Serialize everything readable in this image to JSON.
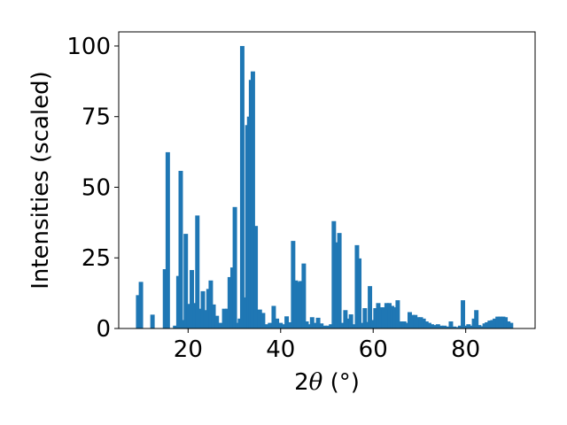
{
  "chart_data": {
    "type": "bar",
    "xlabel_prefix": "2",
    "xlabel_symbol": "θ",
    "xlabel_suffix": " (°)",
    "ylabel": "Intensities (scaled)",
    "xlim": [
      5,
      95
    ],
    "ylim": [
      0,
      105
    ],
    "x_ticks": [
      20,
      40,
      60,
      80
    ],
    "y_ticks": [
      0,
      25,
      50,
      75,
      100
    ],
    "grid": false,
    "bar_color": "#1f77b4",
    "bar_width": 0.95,
    "bars": [
      [
        9.2,
        11.8
      ],
      [
        9.8,
        16.5
      ],
      [
        12.3,
        4.9
      ],
      [
        15.0,
        21.0
      ],
      [
        15.6,
        62.4
      ],
      [
        17.2,
        1.0
      ],
      [
        17.9,
        18.6
      ],
      [
        18.4,
        55.8
      ],
      [
        19.0,
        3.0
      ],
      [
        19.5,
        33.5
      ],
      [
        20.1,
        8.7
      ],
      [
        20.8,
        20.7
      ],
      [
        21.4,
        9.0
      ],
      [
        22.0,
        40.0
      ],
      [
        22.6,
        7.0
      ],
      [
        23.2,
        13.2
      ],
      [
        23.8,
        6.5
      ],
      [
        24.4,
        14.0
      ],
      [
        24.9,
        17.0
      ],
      [
        25.5,
        8.5
      ],
      [
        26.2,
        4.5
      ],
      [
        27.0,
        2.0
      ],
      [
        27.8,
        7.0
      ],
      [
        28.5,
        7.0
      ],
      [
        29.0,
        18.2
      ],
      [
        29.6,
        21.6
      ],
      [
        30.1,
        43.0
      ],
      [
        30.7,
        2.0
      ],
      [
        31.2,
        3.5
      ],
      [
        31.7,
        100.0
      ],
      [
        32.3,
        11.0
      ],
      [
        32.8,
        72.0
      ],
      [
        33.2,
        75.0
      ],
      [
        33.6,
        88.0
      ],
      [
        34.0,
        91.0
      ],
      [
        34.6,
        36.3
      ],
      [
        35.5,
        6.7
      ],
      [
        36.2,
        5.5
      ],
      [
        37.0,
        1.5
      ],
      [
        37.7,
        2.0
      ],
      [
        38.5,
        8.0
      ],
      [
        39.2,
        3.5
      ],
      [
        40.0,
        2.0
      ],
      [
        40.7,
        1.5
      ],
      [
        41.3,
        4.3
      ],
      [
        42.0,
        2.2
      ],
      [
        42.7,
        31.0
      ],
      [
        43.3,
        17.0
      ],
      [
        43.9,
        16.5
      ],
      [
        44.4,
        16.8
      ],
      [
        45.0,
        23.0
      ],
      [
        45.6,
        2.5
      ],
      [
        46.2,
        1.5
      ],
      [
        46.8,
        4.0
      ],
      [
        47.4,
        2.0
      ],
      [
        48.1,
        3.8
      ],
      [
        48.8,
        1.8
      ],
      [
        49.5,
        1.0
      ],
      [
        50.2,
        1.0
      ],
      [
        50.9,
        1.5
      ],
      [
        51.5,
        38.0
      ],
      [
        52.1,
        30.5
      ],
      [
        52.7,
        33.8
      ],
      [
        53.3,
        2.0
      ],
      [
        54.0,
        6.5
      ],
      [
        54.6,
        3.5
      ],
      [
        55.2,
        5.0
      ],
      [
        55.9,
        1.5
      ],
      [
        56.5,
        29.5
      ],
      [
        57.0,
        24.8
      ],
      [
        57.6,
        2.0
      ],
      [
        58.2,
        7.2
      ],
      [
        58.8,
        2.3
      ],
      [
        59.3,
        15.0
      ],
      [
        59.9,
        3.0
      ],
      [
        60.5,
        7.2
      ],
      [
        61.1,
        9.0
      ],
      [
        61.7,
        7.5
      ],
      [
        62.3,
        7.5
      ],
      [
        62.9,
        9.0
      ],
      [
        63.5,
        9.0
      ],
      [
        64.1,
        8.0
      ],
      [
        64.7,
        7.5
      ],
      [
        65.3,
        10.0
      ],
      [
        66.0,
        2.5
      ],
      [
        66.7,
        2.5
      ],
      [
        67.3,
        2.0
      ],
      [
        67.9,
        5.8
      ],
      [
        68.5,
        4.8
      ],
      [
        69.1,
        4.8
      ],
      [
        69.7,
        4.0
      ],
      [
        70.3,
        4.0
      ],
      [
        70.9,
        3.5
      ],
      [
        71.5,
        2.5
      ],
      [
        72.1,
        2.0
      ],
      [
        72.7,
        1.5
      ],
      [
        73.3,
        1.2
      ],
      [
        74.0,
        1.5
      ],
      [
        74.7,
        1.0
      ],
      [
        75.4,
        1.0
      ],
      [
        76.1,
        0.7
      ],
      [
        76.8,
        2.5
      ],
      [
        77.5,
        0.7
      ],
      [
        78.2,
        0.5
      ],
      [
        78.8,
        1.0
      ],
      [
        79.4,
        10.0
      ],
      [
        80.0,
        1.0
      ],
      [
        80.6,
        1.5
      ],
      [
        81.2,
        1.0
      ],
      [
        81.8,
        3.5
      ],
      [
        82.3,
        6.5
      ],
      [
        82.9,
        1.2
      ],
      [
        83.5,
        0.8
      ],
      [
        84.1,
        1.8
      ],
      [
        84.6,
        2.2
      ],
      [
        85.2,
        2.8
      ],
      [
        85.8,
        3.0
      ],
      [
        86.3,
        3.5
      ],
      [
        86.9,
        4.2
      ],
      [
        87.5,
        4.2
      ],
      [
        88.1,
        4.2
      ],
      [
        88.6,
        4.0
      ],
      [
        89.2,
        2.5
      ],
      [
        89.8,
        2.0
      ]
    ]
  }
}
